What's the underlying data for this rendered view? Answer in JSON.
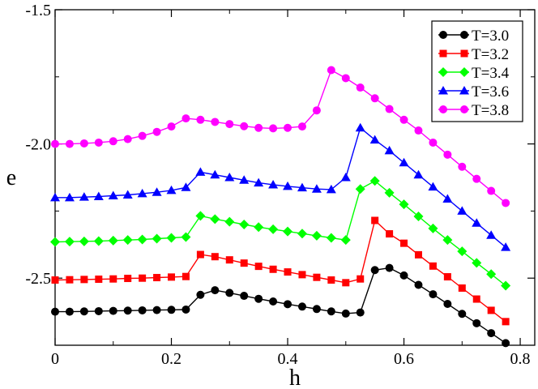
{
  "chart_data": {
    "type": "line",
    "title": "",
    "xlabel": "h",
    "ylabel": "e",
    "xlim": [
      0,
      0.825
    ],
    "ylim": [
      -2.75,
      -1.5
    ],
    "x_ticks": [
      0,
      0.2,
      0.4,
      0.6,
      0.8
    ],
    "x_tick_labels": [
      "0",
      "0.2",
      "0.4",
      "0.6",
      "0.8"
    ],
    "y_ticks": [
      -2.5,
      -2.0,
      -1.5
    ],
    "y_tick_labels": [
      "-2.5",
      "-2.0",
      "-1.5"
    ],
    "grid": false,
    "legend_position": "top-right",
    "x": [
      0,
      0.025,
      0.05,
      0.075,
      0.1,
      0.125,
      0.15,
      0.175,
      0.2,
      0.225,
      0.25,
      0.275,
      0.3,
      0.325,
      0.35,
      0.375,
      0.4,
      0.425,
      0.45,
      0.475,
      0.5,
      0.525,
      0.55,
      0.575,
      0.6,
      0.625,
      0.65,
      0.675,
      0.7,
      0.725,
      0.75,
      0.775
    ],
    "series": [
      {
        "name": "T=3.0",
        "color": "#000000",
        "marker": "circle",
        "values": [
          -2.625,
          -2.625,
          -2.624,
          -2.623,
          -2.622,
          -2.621,
          -2.62,
          -2.619,
          -2.618,
          -2.617,
          -2.562,
          -2.545,
          -2.555,
          -2.566,
          -2.577,
          -2.587,
          -2.597,
          -2.606,
          -2.615,
          -2.624,
          -2.632,
          -2.628,
          -2.47,
          -2.462,
          -2.49,
          -2.525,
          -2.56,
          -2.596,
          -2.633,
          -2.668,
          -2.705,
          -2.742
        ]
      },
      {
        "name": "T=3.2",
        "color": "#ff0000",
        "marker": "square",
        "values": [
          -2.507,
          -2.506,
          -2.505,
          -2.504,
          -2.503,
          -2.501,
          -2.5,
          -2.498,
          -2.496,
          -2.494,
          -2.412,
          -2.42,
          -2.432,
          -2.444,
          -2.456,
          -2.467,
          -2.477,
          -2.487,
          -2.497,
          -2.507,
          -2.517,
          -2.503,
          -2.285,
          -2.335,
          -2.37,
          -2.413,
          -2.455,
          -2.495,
          -2.537,
          -2.578,
          -2.62,
          -2.662
        ]
      },
      {
        "name": "T=3.4",
        "color": "#00ff00",
        "marker": "diamond",
        "values": [
          -2.365,
          -2.364,
          -2.363,
          -2.362,
          -2.36,
          -2.358,
          -2.356,
          -2.353,
          -2.35,
          -2.347,
          -2.268,
          -2.28,
          -2.29,
          -2.3,
          -2.31,
          -2.318,
          -2.326,
          -2.334,
          -2.342,
          -2.35,
          -2.358,
          -2.168,
          -2.138,
          -2.182,
          -2.225,
          -2.27,
          -2.315,
          -2.358,
          -2.4,
          -2.443,
          -2.485,
          -2.528
        ]
      },
      {
        "name": "T=3.6",
        "color": "#0000ff",
        "marker": "triangle",
        "values": [
          -2.2,
          -2.2,
          -2.198,
          -2.196,
          -2.193,
          -2.19,
          -2.185,
          -2.18,
          -2.173,
          -2.162,
          -2.105,
          -2.115,
          -2.125,
          -2.135,
          -2.145,
          -2.152,
          -2.158,
          -2.163,
          -2.168,
          -2.17,
          -2.125,
          -1.94,
          -1.985,
          -2.025,
          -2.07,
          -2.115,
          -2.16,
          -2.205,
          -2.25,
          -2.295,
          -2.34,
          -2.385
        ]
      },
      {
        "name": "T=3.8",
        "color": "#ff00ff",
        "marker": "circle",
        "values": [
          -2.0,
          -2.0,
          -1.998,
          -1.995,
          -1.99,
          -1.982,
          -1.97,
          -1.955,
          -1.935,
          -1.905,
          -1.91,
          -1.918,
          -1.926,
          -1.934,
          -1.94,
          -1.942,
          -1.94,
          -1.935,
          -1.875,
          -1.725,
          -1.755,
          -1.79,
          -1.83,
          -1.87,
          -1.91,
          -1.95,
          -1.995,
          -2.04,
          -2.085,
          -2.13,
          -2.175,
          -2.22
        ]
      }
    ]
  }
}
